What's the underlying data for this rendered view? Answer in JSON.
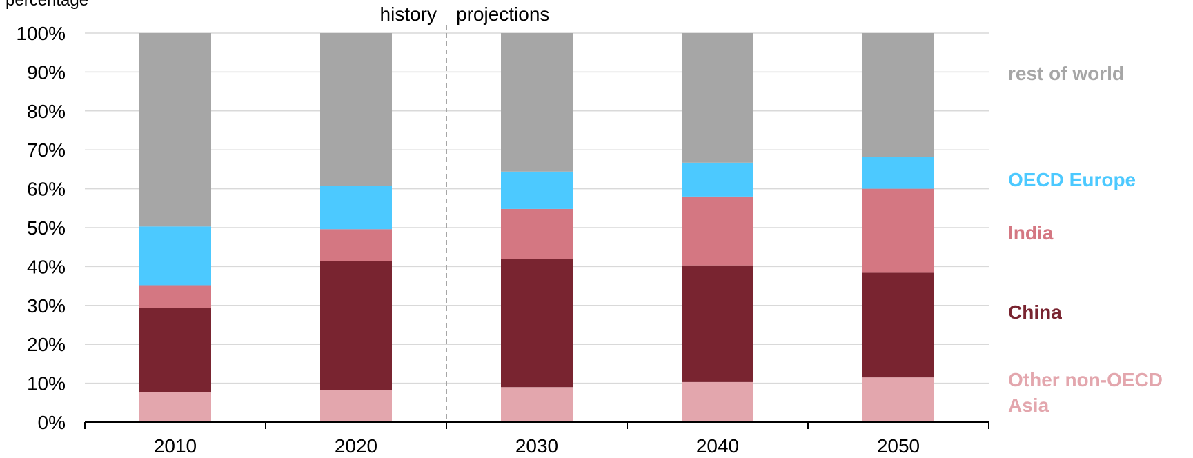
{
  "chart_data": {
    "type": "bar",
    "stacked": true,
    "ylabel": "percentage",
    "ylim": [
      0,
      100
    ],
    "yticks": [
      "0%",
      "10%",
      "20%",
      "30%",
      "40%",
      "50%",
      "60%",
      "70%",
      "80%",
      "90%",
      "100%"
    ],
    "categories": [
      "2010",
      "2020",
      "2030",
      "2040",
      "2050"
    ],
    "grid": true,
    "divider": {
      "after_category": "2020",
      "left_label": "history",
      "right_label": "projections"
    },
    "series": [
      {
        "name": "Other non-OECD Asia",
        "color": "#E3A6AD",
        "values": [
          7.8,
          8.2,
          9.0,
          10.3,
          11.5
        ]
      },
      {
        "name": "China",
        "color": "#792430",
        "values": [
          21.5,
          33.2,
          33.0,
          30.0,
          26.9
        ]
      },
      {
        "name": "India",
        "color": "#D47782",
        "values": [
          5.9,
          8.2,
          12.8,
          17.7,
          21.6
        ]
      },
      {
        "name": "OECD Europe",
        "color": "#4CC9FF",
        "values": [
          15.1,
          11.2,
          9.6,
          8.7,
          8.1
        ]
      },
      {
        "name": "rest of world",
        "color": "#A6A6A6",
        "values": [
          49.7,
          39.2,
          35.6,
          33.3,
          31.9
        ]
      }
    ],
    "legend_placement": "right",
    "legend": [
      {
        "series": "rest of world",
        "lines": [
          "rest of world"
        ]
      },
      {
        "series": "OECD Europe",
        "lines": [
          "OECD Europe"
        ]
      },
      {
        "series": "India",
        "lines": [
          "India"
        ]
      },
      {
        "series": "China",
        "lines": [
          "China"
        ]
      },
      {
        "series": "Other non-OECD Asia",
        "lines": [
          "Other non-OECD",
          "Asia"
        ]
      }
    ]
  }
}
